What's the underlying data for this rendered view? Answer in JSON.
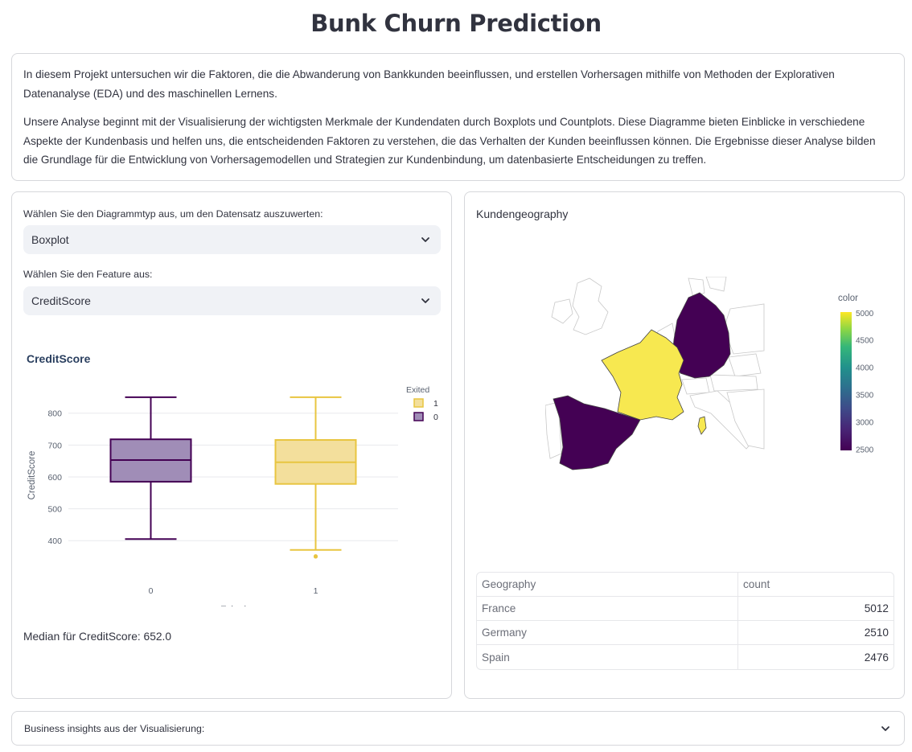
{
  "page": {
    "title": "Bunk Churn Prediction"
  },
  "intro": {
    "paragraph1": "In diesem Projekt untersuchen wir die Faktoren, die die Abwanderung von Bankkunden beeinflussen, und erstellen Vorhersagen mithilfe von Methoden der Explorativen Datenanalyse (EDA) und des maschinellen Lernens.",
    "paragraph2": "Unsere Analyse beginnt mit der Visualisierung der wichtigsten Merkmale der Kundendaten durch Boxplots und Countplots. Diese Diagramme bieten Einblicke in verschiedene Aspekte der Kundenbasis und helfen uns, die entscheidenden Faktoren zu verstehen, die das Verhalten der Kunden beeinflussen können. Die Ergebnisse dieser Analyse bilden die Grundlage für die Entwicklung von Vorhersagemodellen und Strategien zur Kundenbindung, um datenbasierte Entscheidungen zu treffen."
  },
  "controls": {
    "chart_type_label": "Wählen Sie den Diagrammtyp aus, um den Datensatz auszuwerten:",
    "chart_type_value": "Boxplot",
    "feature_label": "Wählen Sie den Feature aus:",
    "feature_value": "CreditScore"
  },
  "boxplot": {
    "title": "CreditScore",
    "median_text": "Median für CreditScore: 652.0"
  },
  "map": {
    "title": "Kundengeography",
    "colorbar_title": "color"
  },
  "geo_table": {
    "headers": [
      "Geography",
      "count"
    ],
    "rows": [
      {
        "name": "France",
        "count": "5012"
      },
      {
        "name": "Germany",
        "count": "2510"
      },
      {
        "name": "Spain",
        "count": "2476"
      }
    ]
  },
  "insights": {
    "label": "Business insights aus der Visualisierung:"
  },
  "colors": {
    "exited_0": "#440154",
    "exited_0_fill": "#a08db7",
    "exited_1": "#e8c540",
    "exited_1_fill": "#f3df9c",
    "map_low": "#440154",
    "map_high": "#fde725"
  },
  "chart_data": {
    "type": "box",
    "title": "CreditScore",
    "xlabel": "Exited",
    "ylabel": "CreditScore",
    "categories": [
      "0",
      "1"
    ],
    "ylim": [
      340,
      870
    ],
    "yticks": [
      400,
      500,
      600,
      700,
      800
    ],
    "legend": {
      "title": "Exited",
      "entries": [
        "1",
        "0"
      ],
      "placement": "top-right"
    },
    "series": [
      {
        "name": "0",
        "lower_fence": 405,
        "q1": 585,
        "median": 653,
        "q3": 718,
        "upper_fence": 850,
        "outliers": []
      },
      {
        "name": "1",
        "lower_fence": 371,
        "q1": 578,
        "median": 646,
        "q3": 716,
        "upper_fence": 850,
        "outliers": [
          350,
          351,
          350
        ]
      }
    ]
  },
  "map_data": {
    "type": "choropleth",
    "colorbar_ticks": [
      2500,
      3000,
      3500,
      4000,
      4500,
      5000
    ],
    "colorbar_range": [
      2476,
      5012
    ],
    "regions": [
      {
        "name": "France",
        "value": 5012
      },
      {
        "name": "Germany",
        "value": 2510
      },
      {
        "name": "Spain",
        "value": 2476
      }
    ]
  }
}
